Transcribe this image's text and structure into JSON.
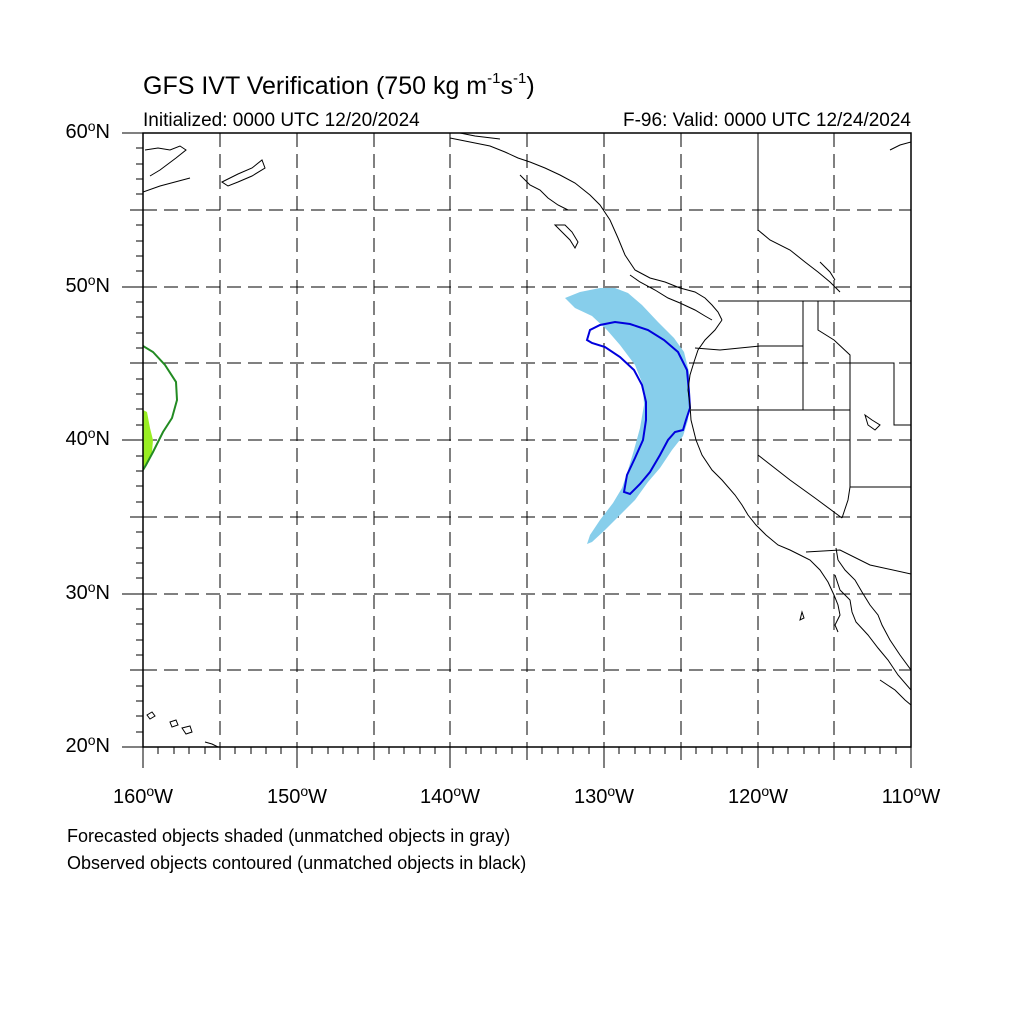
{
  "title": {
    "main": "GFS IVT Verification (750 kg m",
    "exp1": "-1",
    "mid": "s",
    "exp2": "-1",
    "end": ")"
  },
  "initialized": "Initialized: 0000 UTC 12/20/2024",
  "valid": "F-96: Valid: 0000 UTC 12/24/2024",
  "axes": {
    "lat_labels": [
      {
        "deg": "60",
        "suffix": "N"
      },
      {
        "deg": "50",
        "suffix": "N"
      },
      {
        "deg": "40",
        "suffix": "N"
      },
      {
        "deg": "30",
        "suffix": "N"
      },
      {
        "deg": "20",
        "suffix": "N"
      }
    ],
    "lon_labels": [
      {
        "deg": "160",
        "suffix": "W"
      },
      {
        "deg": "150",
        "suffix": "W"
      },
      {
        "deg": "140",
        "suffix": "W"
      },
      {
        "deg": "130",
        "suffix": "W"
      },
      {
        "deg": "120",
        "suffix": "W"
      },
      {
        "deg": "110",
        "suffix": "W"
      }
    ],
    "lat_range": [
      20,
      60
    ],
    "lon_range": [
      -160,
      -110
    ],
    "grid": "dashed every 5 degrees"
  },
  "notes": {
    "forecast": "Forecasted objects shaded (unmatched objects in gray)",
    "observed": "Observed objects contoured (unmatched objects in black)"
  },
  "colors": {
    "forecast_fill": "#87ceeb",
    "observed_contour": "#0000dd",
    "west_fill": "#99ee22",
    "west_contour": "#228b22",
    "coast": "#000000"
  }
}
